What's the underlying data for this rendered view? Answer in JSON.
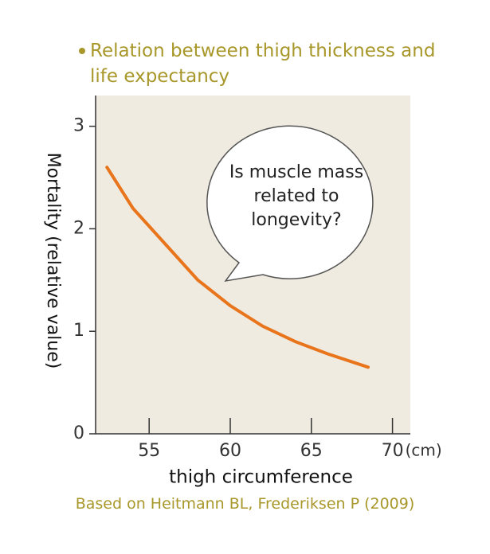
{
  "chart_data": {
    "type": "line",
    "title": "Relation between thigh thickness and life expectancy",
    "annotation": "Is muscle mass related to longevity?",
    "source": "Based on Heitmann BL, Frederiksen P (2009)",
    "x_label": "thigh circumference",
    "x_unit": "(cm)",
    "y_label": "Mortality (relative value)",
    "x": [
      52.4,
      54,
      56,
      58,
      60,
      62,
      64,
      66,
      68.5
    ],
    "series": [
      {
        "name": "Mortality",
        "color": "#e8741c",
        "values": [
          2.6,
          2.2,
          1.85,
          1.5,
          1.25,
          1.05,
          0.9,
          0.78,
          0.65
        ]
      }
    ],
    "xlim": [
      51.7,
      71.1
    ],
    "xticks": [
      55,
      60,
      65,
      70
    ],
    "ylim": [
      0,
      3.3
    ],
    "yticks": [
      0,
      1,
      2,
      3
    ],
    "plot_background": "#f0ebe0"
  }
}
